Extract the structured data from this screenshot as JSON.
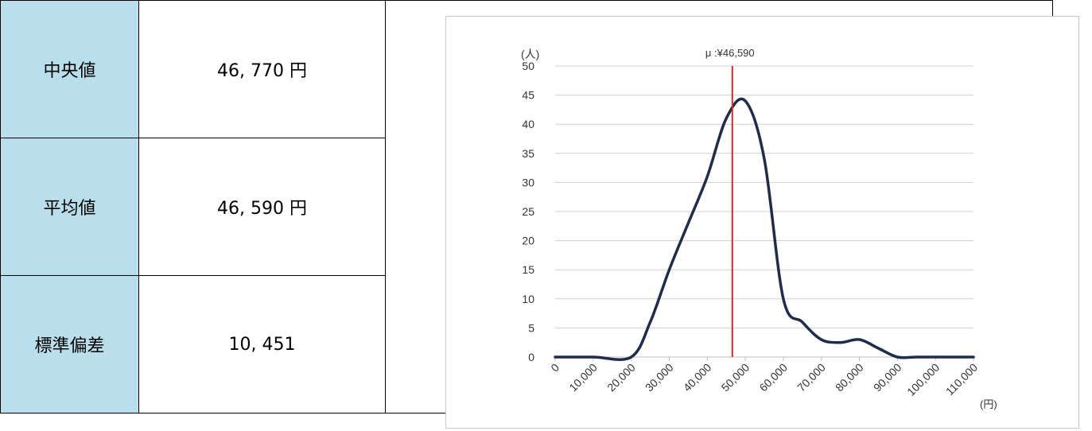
{
  "table": {
    "rows": [
      {
        "label": "中央値",
        "value": "46, 770 円"
      },
      {
        "label": "平均値",
        "value": "46, 590 円"
      },
      {
        "label": "標準偏差",
        "value": "10, 451"
      }
    ]
  },
  "colors": {
    "label_bg": "#b8dfeb",
    "curve": "#1f2d4d",
    "mean_line": "#d42a2a",
    "grid": "#d0d0d0"
  },
  "chart_data": {
    "type": "line",
    "x": [
      0,
      10000,
      20000,
      25000,
      30000,
      35000,
      40000,
      45000,
      50000,
      55000,
      60000,
      65000,
      70000,
      75000,
      80000,
      85000,
      90000,
      95000,
      100000,
      105000,
      110000
    ],
    "series": [
      {
        "values": [
          0,
          0,
          0,
          6,
          15,
          23,
          31,
          41,
          44,
          34,
          10,
          6,
          3,
          2.5,
          3,
          1.5,
          0,
          0,
          0,
          0,
          0
        ]
      }
    ],
    "x_tick_labels": [
      "0",
      "10,000",
      "20,000",
      "30,000",
      "40,000",
      "50,000",
      "60,000",
      "70,000",
      "80,000",
      "90,000",
      "100,000",
      "110,000"
    ],
    "y_ticks": [
      0,
      5,
      10,
      15,
      20,
      25,
      30,
      35,
      40,
      45,
      50
    ],
    "ylim": [
      0,
      50
    ],
    "xlim": [
      0,
      110000
    ],
    "ylabel": "(人)",
    "xlabel": "(円)",
    "grid": true,
    "annotation": {
      "text": "μ :¥46,590",
      "x": 46590
    }
  }
}
